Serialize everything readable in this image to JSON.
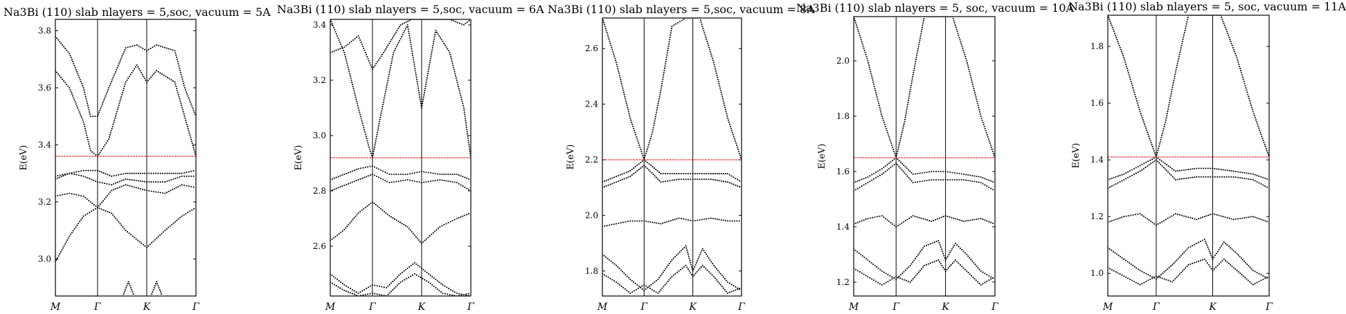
{
  "chart_data": [
    {
      "type": "scatter",
      "title": "Na3Bi (110) slab nlayers = 5,soc, vacuum = 5A",
      "ylabel": "E(eV)",
      "kpoints": [
        "M",
        "Γ",
        "K",
        "Γ"
      ],
      "kpoint_positions": [
        0,
        0.3,
        0.65,
        1.0
      ],
      "ylim": [
        2.87,
        3.84
      ],
      "yticks": [
        3.0,
        3.2,
        3.4,
        3.6,
        3.8
      ],
      "ytick_labels": [
        "3.0",
        "3.2",
        "3.4",
        "3.6",
        "3.8"
      ],
      "fermi_level": 3.36,
      "bands": [
        {
          "x": [
            0,
            0.1,
            0.2,
            0.3,
            0.4,
            0.5,
            0.65,
            0.78,
            0.9,
            1.0
          ],
          "y": [
            2.99,
            3.08,
            3.15,
            3.18,
            3.16,
            3.1,
            3.04,
            3.1,
            3.15,
            3.18
          ]
        },
        {
          "x": [
            0,
            0.1,
            0.2,
            0.3,
            0.4,
            0.5,
            0.65,
            0.78,
            0.9,
            1.0
          ],
          "y": [
            3.22,
            3.23,
            3.22,
            3.18,
            3.24,
            3.26,
            3.24,
            3.23,
            3.26,
            3.25
          ]
        },
        {
          "x": [
            0,
            0.1,
            0.2,
            0.3,
            0.4,
            0.5,
            0.65,
            0.78,
            0.9,
            1.0
          ],
          "y": [
            3.28,
            3.3,
            3.29,
            3.27,
            3.26,
            3.28,
            3.27,
            3.27,
            3.29,
            3.29
          ]
        },
        {
          "x": [
            0,
            0.1,
            0.2,
            0.3,
            0.4,
            0.5,
            0.65,
            0.78,
            0.9,
            1.0
          ],
          "y": [
            3.29,
            3.3,
            3.31,
            3.31,
            3.29,
            3.3,
            3.3,
            3.3,
            3.3,
            3.31
          ]
        },
        {
          "x": [
            0,
            0.1,
            0.2,
            0.25,
            0.3,
            0.38,
            0.5,
            0.58,
            0.65,
            0.72,
            0.85,
            1.0
          ],
          "y": [
            3.66,
            3.6,
            3.48,
            3.38,
            3.36,
            3.42,
            3.62,
            3.68,
            3.62,
            3.66,
            3.62,
            3.36
          ]
        },
        {
          "x": [
            0,
            0.1,
            0.2,
            0.25,
            0.3,
            0.38,
            0.5,
            0.58,
            0.65,
            0.72,
            0.85,
            0.92,
            1.0
          ],
          "y": [
            3.78,
            3.72,
            3.6,
            3.5,
            3.5,
            3.6,
            3.74,
            3.75,
            3.73,
            3.75,
            3.73,
            3.6,
            3.5
          ]
        },
        {
          "x": [
            0.48,
            0.52,
            0.56
          ],
          "y": [
            2.87,
            2.92,
            2.87
          ]
        },
        {
          "x": [
            0.68,
            0.72,
            0.76
          ],
          "y": [
            2.87,
            2.92,
            2.87
          ]
        }
      ]
    },
    {
      "type": "scatter",
      "title": "Na3Bi (110) slab nlayers = 5,soc, vacuum = 6A",
      "ylabel": "E(eV)",
      "kpoints": [
        "M",
        "Γ",
        "K",
        "Γ"
      ],
      "kpoint_positions": [
        0,
        0.3,
        0.65,
        1.0
      ],
      "ylim": [
        2.42,
        3.42
      ],
      "yticks": [
        2.6,
        2.8,
        3.0,
        3.2,
        3.4
      ],
      "ytick_labels": [
        "2.6",
        "2.8",
        "3.0",
        "3.2",
        "3.4"
      ],
      "fermi_level": 2.92,
      "bands": [
        {
          "x": [
            0,
            0.1,
            0.2,
            0.3,
            0.42,
            0.55,
            0.65,
            0.78,
            0.9,
            1.0
          ],
          "y": [
            2.62,
            2.66,
            2.72,
            2.76,
            2.71,
            2.67,
            2.61,
            2.67,
            2.7,
            2.72
          ]
        },
        {
          "x": [
            0,
            0.1,
            0.2,
            0.3,
            0.42,
            0.55,
            0.65,
            0.78,
            0.9,
            1.0
          ],
          "y": [
            2.8,
            2.82,
            2.84,
            2.86,
            2.83,
            2.84,
            2.83,
            2.84,
            2.83,
            2.8
          ]
        },
        {
          "x": [
            0,
            0.1,
            0.2,
            0.3,
            0.42,
            0.55,
            0.65,
            0.78,
            0.9,
            1.0
          ],
          "y": [
            2.84,
            2.86,
            2.88,
            2.89,
            2.86,
            2.86,
            2.87,
            2.86,
            2.86,
            2.84
          ]
        },
        {
          "x": [
            0,
            0.1,
            0.2,
            0.28,
            0.3,
            0.35,
            0.45,
            0.55,
            0.65,
            0.75,
            0.85,
            0.95,
            1.0
          ],
          "y": [
            3.42,
            3.3,
            3.1,
            2.95,
            2.92,
            3.05,
            3.3,
            3.4,
            3.1,
            3.38,
            3.3,
            3.1,
            2.92
          ]
        },
        {
          "x": [
            0,
            0.1,
            0.2,
            0.3,
            0.38,
            0.5,
            0.58,
            0.65,
            0.72,
            0.85,
            0.95,
            1.0
          ],
          "y": [
            3.3,
            3.32,
            3.36,
            3.24,
            3.3,
            3.4,
            3.42,
            3.42,
            3.42,
            3.42,
            3.4,
            3.42
          ]
        },
        {
          "x": [
            0,
            0.1,
            0.2,
            0.3,
            0.4,
            0.5,
            0.6,
            0.7,
            0.8,
            0.9,
            1.0
          ],
          "y": [
            2.5,
            2.46,
            2.43,
            2.46,
            2.45,
            2.5,
            2.54,
            2.5,
            2.46,
            2.43,
            2.42
          ]
        },
        {
          "x": [
            0,
            0.1,
            0.2,
            0.3,
            0.4,
            0.5,
            0.6,
            0.7,
            0.8,
            0.9,
            1.0
          ],
          "y": [
            2.47,
            2.44,
            2.42,
            2.43,
            2.42,
            2.47,
            2.5,
            2.47,
            2.43,
            2.42,
            2.43
          ]
        }
      ]
    },
    {
      "type": "scatter",
      "title": "Na3Bi (110) slab nlayers = 5,soc, vacuum = 8A",
      "ylabel": "E(eV)",
      "kpoints": [
        "M",
        "Γ",
        "K",
        "Γ"
      ],
      "kpoint_positions": [
        0,
        0.3,
        0.65,
        1.0
      ],
      "ylim": [
        1.71,
        2.71
      ],
      "yticks": [
        1.8,
        2.0,
        2.2,
        2.4,
        2.6
      ],
      "ytick_labels": [
        "1.8",
        "2.0",
        "2.2",
        "2.4",
        "2.6"
      ],
      "fermi_level": 2.2,
      "bands": [
        {
          "x": [
            0,
            0.1,
            0.2,
            0.3,
            0.42,
            0.55,
            0.65,
            0.78,
            0.9,
            1.0
          ],
          "y": [
            1.96,
            1.97,
            1.98,
            1.98,
            1.97,
            1.99,
            1.98,
            1.99,
            1.98,
            1.98
          ]
        },
        {
          "x": [
            0,
            0.1,
            0.2,
            0.3,
            0.42,
            0.55,
            0.65,
            0.78,
            0.9,
            1.0
          ],
          "y": [
            2.1,
            2.12,
            2.14,
            2.18,
            2.12,
            2.13,
            2.13,
            2.13,
            2.12,
            2.1
          ]
        },
        {
          "x": [
            0,
            0.1,
            0.2,
            0.3,
            0.42,
            0.55,
            0.65,
            0.78,
            0.9,
            1.0
          ],
          "y": [
            2.12,
            2.14,
            2.16,
            2.2,
            2.15,
            2.15,
            2.15,
            2.15,
            2.15,
            2.12
          ]
        },
        {
          "x": [
            0,
            0.1,
            0.2,
            0.3,
            0.36,
            0.42,
            0.5,
            0.6,
            0.65,
            0.7,
            0.8,
            0.9,
            1.0
          ],
          "y": [
            2.71,
            2.55,
            2.35,
            2.2,
            2.3,
            2.45,
            2.68,
            2.71,
            2.71,
            2.71,
            2.55,
            2.35,
            2.2
          ]
        },
        {
          "x": [
            0,
            0.1,
            0.2,
            0.3,
            0.4,
            0.5,
            0.6,
            0.65,
            0.72,
            0.8,
            0.9,
            1.0
          ],
          "y": [
            1.86,
            1.82,
            1.77,
            1.73,
            1.77,
            1.84,
            1.89,
            1.8,
            1.88,
            1.82,
            1.76,
            1.73
          ]
        },
        {
          "x": [
            0,
            0.1,
            0.2,
            0.3,
            0.4,
            0.5,
            0.6,
            0.65,
            0.72,
            0.8,
            0.9,
            1.0
          ],
          "y": [
            1.79,
            1.76,
            1.72,
            1.75,
            1.72,
            1.78,
            1.82,
            1.78,
            1.82,
            1.78,
            1.72,
            1.74
          ]
        }
      ]
    },
    {
      "type": "scatter",
      "title": "Na3Bi (110) slab nlayers = 5, soc, vacuum = 10A",
      "ylabel": "E(eV)",
      "kpoints": [
        "M",
        "Γ",
        "K",
        "Γ"
      ],
      "kpoint_positions": [
        0,
        0.3,
        0.65,
        1.0
      ],
      "ylim": [
        1.15,
        2.16
      ],
      "yticks": [
        1.2,
        1.4,
        1.6,
        1.8,
        2.0
      ],
      "ytick_labels": [
        "1.2",
        "1.4",
        "1.6",
        "1.8",
        "2.0"
      ],
      "fermi_level": 1.65,
      "bands": [
        {
          "x": [
            0,
            0.1,
            0.2,
            0.3,
            0.42,
            0.55,
            0.65,
            0.78,
            0.9,
            1.0
          ],
          "y": [
            1.41,
            1.43,
            1.44,
            1.4,
            1.44,
            1.42,
            1.44,
            1.42,
            1.43,
            1.41
          ]
        },
        {
          "x": [
            0,
            0.1,
            0.2,
            0.3,
            0.42,
            0.55,
            0.65,
            0.78,
            0.9,
            1.0
          ],
          "y": [
            1.53,
            1.56,
            1.59,
            1.63,
            1.56,
            1.57,
            1.57,
            1.57,
            1.56,
            1.53
          ]
        },
        {
          "x": [
            0,
            0.1,
            0.2,
            0.3,
            0.42,
            0.55,
            0.65,
            0.78,
            0.9,
            1.0
          ],
          "y": [
            1.56,
            1.58,
            1.61,
            1.65,
            1.59,
            1.6,
            1.6,
            1.59,
            1.58,
            1.56
          ]
        },
        {
          "x": [
            0,
            0.1,
            0.2,
            0.3,
            0.36,
            0.42,
            0.5,
            0.6,
            0.65,
            0.7,
            0.8,
            0.9,
            1.0
          ],
          "y": [
            2.16,
            2.0,
            1.8,
            1.65,
            1.78,
            1.95,
            2.16,
            2.16,
            2.16,
            2.16,
            2.0,
            1.8,
            1.65
          ]
        },
        {
          "x": [
            0,
            0.1,
            0.2,
            0.3,
            0.4,
            0.5,
            0.6,
            0.65,
            0.72,
            0.8,
            0.9,
            1.0
          ],
          "y": [
            1.32,
            1.28,
            1.24,
            1.21,
            1.26,
            1.33,
            1.35,
            1.28,
            1.34,
            1.3,
            1.24,
            1.21
          ]
        },
        {
          "x": [
            0,
            0.1,
            0.2,
            0.3,
            0.4,
            0.5,
            0.6,
            0.65,
            0.72,
            0.8,
            0.9,
            1.0
          ],
          "y": [
            1.25,
            1.22,
            1.19,
            1.22,
            1.2,
            1.26,
            1.28,
            1.24,
            1.28,
            1.24,
            1.19,
            1.22
          ]
        }
      ]
    },
    {
      "type": "scatter",
      "title": "Na3Bi (110) slab nlayers = 5, soc, vacuum = 11A",
      "ylabel": "E(eV)",
      "kpoints": [
        "M",
        "Γ",
        "K",
        "Γ"
      ],
      "kpoint_positions": [
        0,
        0.3,
        0.65,
        1.0
      ],
      "ylim": [
        0.92,
        1.91
      ],
      "yticks": [
        1.0,
        1.2,
        1.4,
        1.6,
        1.8
      ],
      "ytick_labels": [
        "1.0",
        "1.2",
        "1.4",
        "1.6",
        "1.8"
      ],
      "fermi_level": 1.41,
      "bands": [
        {
          "x": [
            0,
            0.1,
            0.2,
            0.3,
            0.42,
            0.55,
            0.65,
            0.78,
            0.9,
            1.0
          ],
          "y": [
            1.18,
            1.2,
            1.21,
            1.17,
            1.21,
            1.19,
            1.21,
            1.19,
            1.2,
            1.18
          ]
        },
        {
          "x": [
            0,
            0.1,
            0.2,
            0.3,
            0.42,
            0.55,
            0.65,
            0.78,
            0.9,
            1.0
          ],
          "y": [
            1.3,
            1.33,
            1.36,
            1.4,
            1.33,
            1.34,
            1.34,
            1.34,
            1.33,
            1.3
          ]
        },
        {
          "x": [
            0,
            0.1,
            0.2,
            0.3,
            0.42,
            0.55,
            0.65,
            0.78,
            0.9,
            1.0
          ],
          "y": [
            1.33,
            1.35,
            1.38,
            1.41,
            1.36,
            1.37,
            1.37,
            1.36,
            1.35,
            1.33
          ]
        },
        {
          "x": [
            0,
            0.1,
            0.2,
            0.3,
            0.36,
            0.42,
            0.5,
            0.6,
            0.65,
            0.7,
            0.8,
            0.9,
            1.0
          ],
          "y": [
            1.91,
            1.76,
            1.57,
            1.41,
            1.54,
            1.71,
            1.91,
            1.91,
            1.91,
            1.91,
            1.76,
            1.57,
            1.41
          ]
        },
        {
          "x": [
            0,
            0.1,
            0.2,
            0.3,
            0.4,
            0.5,
            0.6,
            0.65,
            0.72,
            0.8,
            0.9,
            1.0
          ],
          "y": [
            1.09,
            1.05,
            1.01,
            0.98,
            1.03,
            1.09,
            1.12,
            1.05,
            1.11,
            1.07,
            1.01,
            0.98
          ]
        },
        {
          "x": [
            0,
            0.1,
            0.2,
            0.3,
            0.4,
            0.5,
            0.6,
            0.65,
            0.72,
            0.8,
            0.9,
            1.0
          ],
          "y": [
            1.02,
            0.99,
            0.96,
            0.99,
            0.97,
            1.03,
            1.05,
            1.01,
            1.05,
            1.01,
            0.96,
            0.99
          ]
        }
      ]
    }
  ],
  "colors": {
    "fermi_line": "#ff0000",
    "bands": "#000000",
    "axis": "#000000"
  }
}
